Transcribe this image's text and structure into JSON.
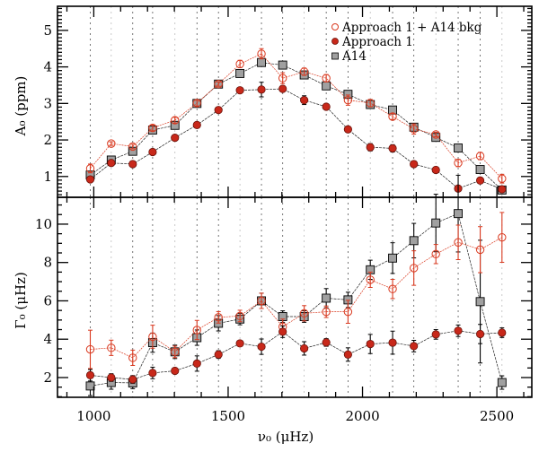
{
  "chart_data": [
    {
      "type": "line",
      "panel": "top",
      "ylabel": "A₀ (ppm)",
      "xlim": [
        865,
        2630
      ],
      "ylim": [
        0.43,
        5.66
      ],
      "yticks": [
        1,
        2,
        3,
        4,
        5
      ],
      "yminor_step": 0.1,
      "grid": "vertical dotted lines at each mode frequency",
      "legend_position": "top-right",
      "x": [
        987,
        1065,
        1145,
        1219,
        1302,
        1384,
        1464,
        1544,
        1624,
        1703,
        1783,
        1865,
        1946,
        2029,
        2112,
        2191,
        2273,
        2356,
        2438,
        2519
      ],
      "series": [
        {
          "name": "Approach 1 + A14 bkg",
          "marker": "open-circle",
          "color": "#d9391f",
          "values": [
            1.22,
            1.9,
            1.82,
            2.33,
            2.54,
            3.01,
            3.53,
            4.08,
            4.36,
            3.69,
            3.87,
            3.69,
            3.09,
            3.01,
            2.64,
            2.3,
            2.15,
            1.37,
            1.56,
            0.94
          ],
          "errors": [
            0.12,
            0.05,
            0.06,
            0.08,
            0.08,
            0.08,
            0.06,
            0.1,
            0.14,
            0.15,
            0.1,
            0.1,
            0.14,
            0.1,
            0.08,
            0.14,
            0.06,
            0.1,
            0.1,
            0.12
          ]
        },
        {
          "name": "Approach 1",
          "marker": "filled-circle",
          "color": "#c8281a",
          "values": [
            0.92,
            1.37,
            1.34,
            1.67,
            2.06,
            2.41,
            2.82,
            3.36,
            3.38,
            3.4,
            3.09,
            2.91,
            2.29,
            1.8,
            1.77,
            1.34,
            1.18,
            0.67,
            0.89,
            0.65
          ],
          "errors": [
            0.05,
            0.04,
            0.04,
            0.07,
            0.05,
            0.08,
            0.05,
            0.05,
            0.2,
            0.08,
            0.12,
            0.05,
            0.06,
            0.1,
            0.1,
            0.04,
            0.04,
            0.04,
            0.04,
            0.04
          ]
        },
        {
          "name": "A14",
          "marker": "gray-square",
          "color": "#a0a0a0",
          "values": [
            1.04,
            1.45,
            1.69,
            2.27,
            2.4,
            3.0,
            3.53,
            3.82,
            4.12,
            4.05,
            3.78,
            3.48,
            3.25,
            2.97,
            2.82,
            2.35,
            2.07,
            1.78,
            1.19,
            0.63
          ],
          "errors": [
            0.06,
            0.05,
            0.05,
            0.05,
            0.05,
            0.06,
            0.05,
            0.05,
            0.06,
            0.06,
            0.06,
            0.05,
            0.05,
            0.05,
            0.05,
            0.06,
            0.05,
            0.05,
            0.05,
            0.06
          ]
        }
      ]
    },
    {
      "type": "line",
      "panel": "bottom",
      "ylabel": "Γ₀ (μHz)",
      "xlabel": "ν₀ (μHz)",
      "xlim": [
        865,
        2630
      ],
      "ylim": [
        0.97,
        11.4
      ],
      "xticks": [
        1000,
        1500,
        2000,
        2500
      ],
      "yticks": [
        2,
        4,
        6,
        8,
        10
      ],
      "yminor_step": 0.5,
      "x": [
        987,
        1065,
        1145,
        1219,
        1302,
        1384,
        1464,
        1544,
        1624,
        1703,
        1783,
        1865,
        1946,
        2029,
        2112,
        2191,
        2273,
        2356,
        2438,
        2519
      ],
      "series": [
        {
          "name": "Approach 1 + A14 bkg",
          "marker": "open-circle",
          "color": "#d9391f",
          "values": [
            3.47,
            3.55,
            3.03,
            4.13,
            3.34,
            4.48,
            5.14,
            5.21,
            6.0,
            4.65,
            5.35,
            5.43,
            5.43,
            7.1,
            6.62,
            7.71,
            8.44,
            9.05,
            8.67,
            9.31
          ],
          "errors": [
            1.0,
            0.4,
            0.4,
            0.6,
            0.3,
            0.5,
            0.3,
            0.3,
            0.4,
            0.4,
            0.4,
            0.3,
            0.6,
            0.4,
            0.5,
            0.9,
            0.5,
            0.9,
            1.2,
            1.3
          ]
        },
        {
          "name": "Approach 1",
          "marker": "filled-circle",
          "color": "#c8281a",
          "values": [
            2.12,
            2.0,
            1.9,
            2.24,
            2.35,
            2.73,
            3.2,
            3.78,
            3.61,
            4.39,
            3.52,
            3.83,
            3.2,
            3.75,
            3.82,
            3.64,
            4.25,
            4.44,
            4.27,
            4.34
          ],
          "errors": [
            0.3,
            0.2,
            0.2,
            0.3,
            0.1,
            0.4,
            0.2,
            0.1,
            0.4,
            0.3,
            0.35,
            0.2,
            0.35,
            0.5,
            0.6,
            0.3,
            0.25,
            0.3,
            0.5,
            0.25
          ]
        },
        {
          "name": "A14",
          "marker": "gray-square",
          "color": "#a0a0a0",
          "values": [
            1.56,
            1.74,
            1.72,
            3.82,
            3.34,
            4.08,
            4.83,
            5.05,
            6.0,
            5.18,
            5.18,
            6.14,
            6.05,
            7.62,
            8.23,
            9.14,
            10.06,
            10.55,
            5.96,
            1.74
          ],
          "errors": [
            0.5,
            0.35,
            0.3,
            0.5,
            0.35,
            0.4,
            0.4,
            0.3,
            0.4,
            0.3,
            0.3,
            0.5,
            0.4,
            0.5,
            0.8,
            0.9,
            1.5,
            2.0,
            3.2,
            0.35
          ]
        }
      ]
    }
  ]
}
